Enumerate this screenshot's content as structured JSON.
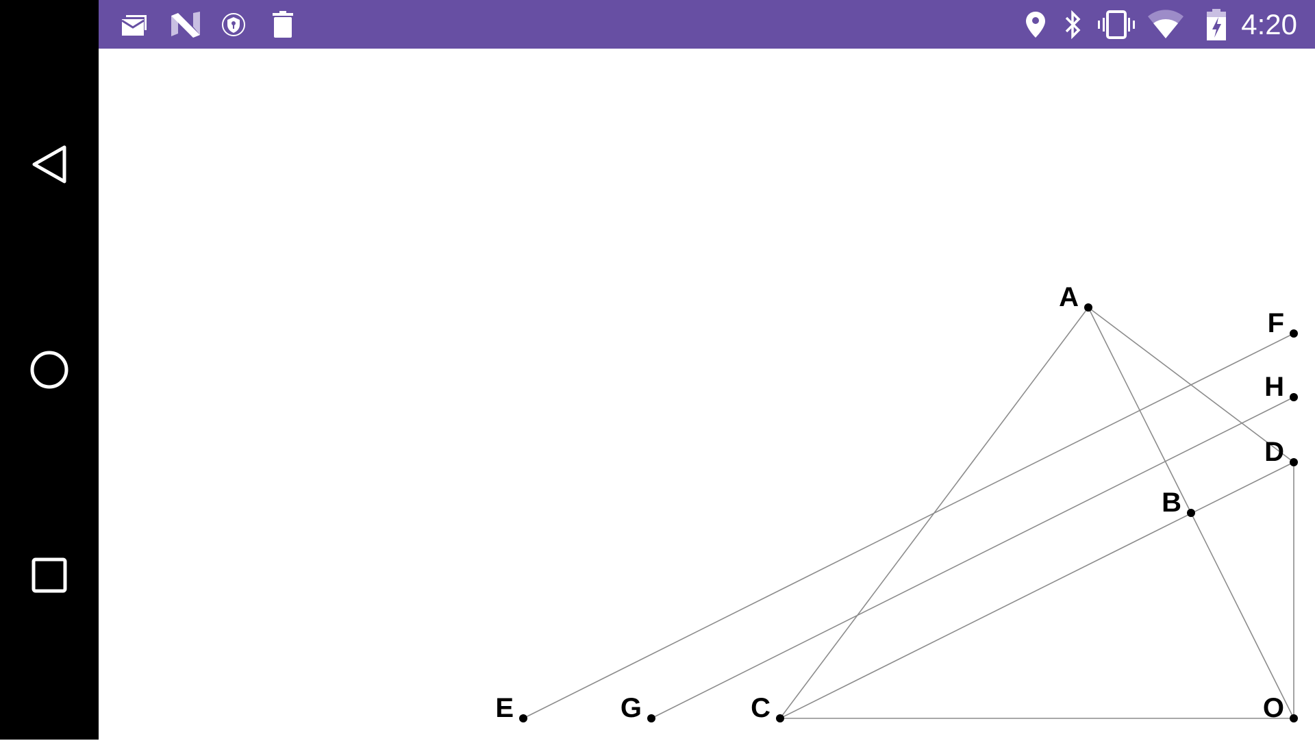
{
  "status_bar": {
    "time": "4:20",
    "background_color": "#674FA3",
    "left_icons": [
      "email-notification-icon",
      "n-logo-icon",
      "vpn-shield-key-icon",
      "trash-icon"
    ],
    "right_icons": [
      "location-icon",
      "bluetooth-icon",
      "vibrate-icon",
      "wifi-icon",
      "battery-charging-icon"
    ]
  },
  "nav_bar": {
    "buttons": [
      "back-icon",
      "home-icon",
      "recents-icon"
    ]
  },
  "diagram": {
    "points": [
      "A",
      "B",
      "C",
      "D",
      "E",
      "F",
      "G",
      "H",
      "O"
    ],
    "segments": [
      [
        "A",
        "C"
      ],
      [
        "A",
        "O"
      ],
      [
        "A",
        "D"
      ],
      [
        "E",
        "F"
      ],
      [
        "G",
        "H"
      ],
      [
        "C",
        "D"
      ],
      [
        "C",
        "O"
      ],
      [
        "D",
        "O"
      ]
    ],
    "line_color": "#8c8c8c"
  }
}
